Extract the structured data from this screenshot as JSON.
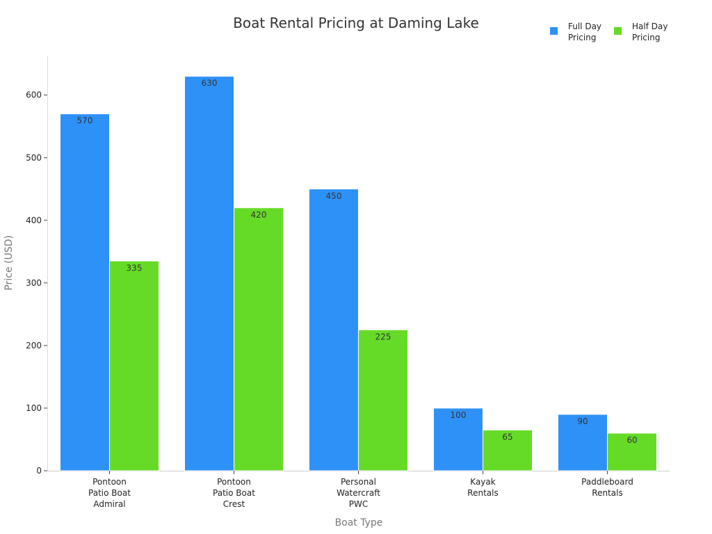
{
  "chart_data": {
    "type": "bar",
    "title": "Boat Rental Pricing at Daming Lake",
    "xlabel": "Boat Type",
    "ylabel": "Price (USD)",
    "ylim": [
      0,
      663
    ],
    "yticks": [
      0,
      100,
      200,
      300,
      400,
      500,
      600
    ],
    "grid": false,
    "legend_position": "top-right",
    "categories": [
      [
        "Pontoon",
        "Patio Boat",
        "Admiral"
      ],
      [
        "Pontoon",
        "Patio Boat",
        "Crest"
      ],
      [
        "Personal",
        "Watercraft",
        "PWC"
      ],
      [
        "Kayak",
        "Rentals"
      ],
      [
        "Paddleboard",
        "Rentals"
      ]
    ],
    "series": [
      {
        "name": [
          "Full Day",
          "Pricing"
        ],
        "color": "#2e91f8",
        "values": [
          570,
          630,
          450,
          100,
          90
        ]
      },
      {
        "name": [
          "Half Day",
          "Pricing"
        ],
        "color": "#66db27",
        "values": [
          335,
          420,
          225,
          65,
          60
        ]
      }
    ]
  }
}
